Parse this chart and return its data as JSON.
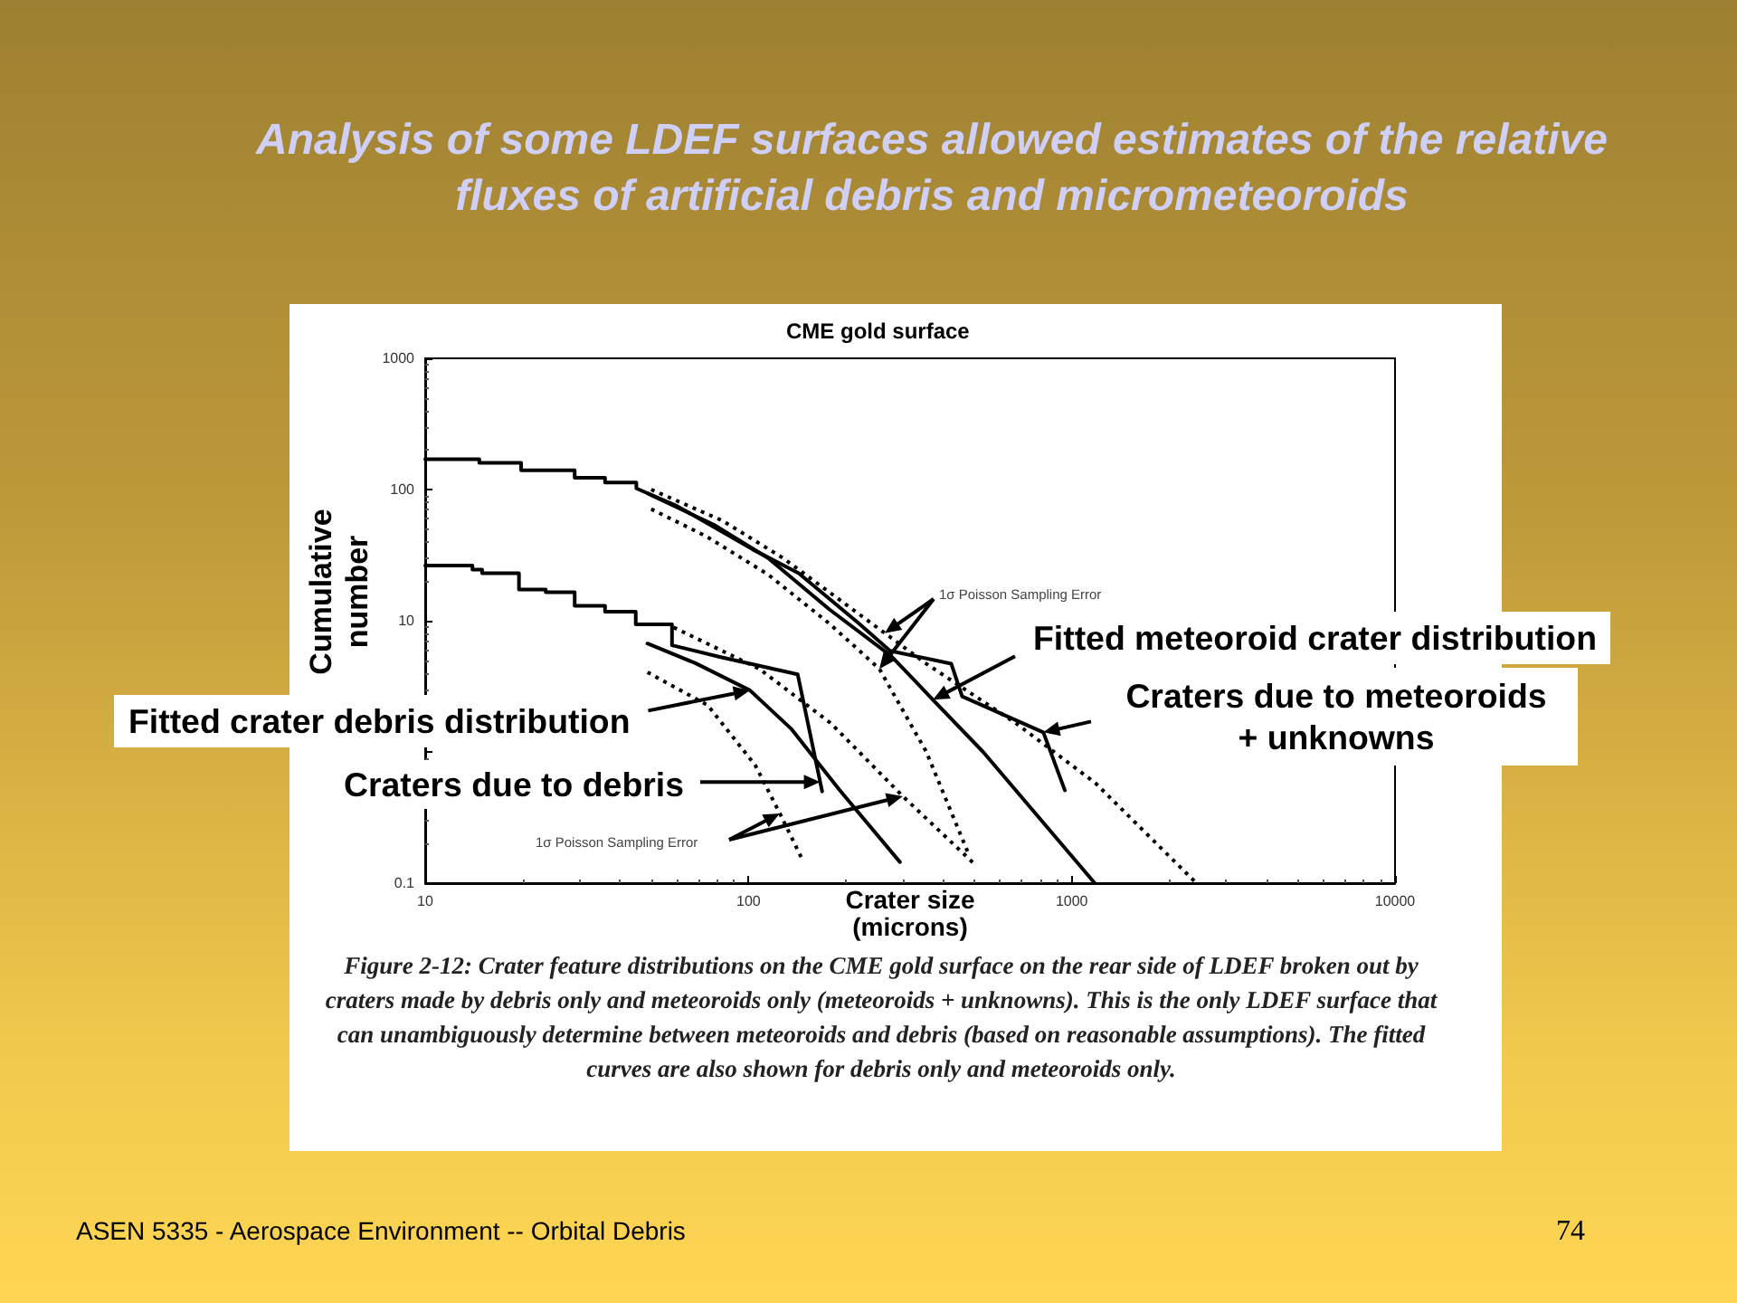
{
  "chart_data": {
    "type": "line",
    "title": "Analysis of some LDEF surfaces allowed estimates of the relative fluxes of artificial debris and micrometeoroids",
    "subtitle": "CME gold surface",
    "xlabel": "Crater size (microns)",
    "ylabel": "Cumulative number",
    "annotations": [
      "Craters due to meteoroids + unknowns",
      "Fitted meteoroid crater distribution",
      "Craters due to debris",
      "Fitted crater debris distribution",
      "1σ Poisson Sampling Error",
      "1σ Poisson Sampling Error",
      "Figure 2-12: Crater feature distributions on the CME gold surface on the rear side of LDEF broken out by craters made by debris only and meteoroids only (meteoroids + unknowns). This is the only LDEF surface that can unambiguously determine between meteoroids and debris (based on reasonable assumptions). The fitted curves are also shown for debris only and meteoroids only.",
      "ASEN 5335 - Aerospace Environment -- Orbital Debris",
      "74"
    ],
    "log": "xy",
    "xlim": [
      10,
      10000
    ],
    "ylim": [
      0.1,
      1000
    ],
    "xticks": [
      10,
      100,
      1000,
      10000
    ],
    "yticks": [
      0.1,
      {
        "value": 1,
        "label": null
      },
      10,
      100,
      1000
    ],
    "grid": false,
    "marker": "none",
    "series": [
      {
        "color": "#000000",
        "line_style": "solid",
        "x": [
          10,
          14.7,
          14.7,
          19.8,
          19.8,
          29,
          29,
          36,
          36,
          45,
          45,
          60,
          78,
          103,
          143,
          220,
          274,
          424,
          458,
          817,
          952
        ],
        "values": [
          170,
          170,
          160,
          160,
          140,
          140,
          123,
          123,
          113,
          113,
          102,
          75,
          52,
          35,
          23,
          9.5,
          5.9,
          4.7,
          2.65,
          1.41,
          0.51
        ]
      },
      {
        "color": "#000000",
        "line_style": "solid",
        "x": [
          49,
          78,
          115,
          178,
          276,
          372,
          532,
          1178
        ],
        "values": [
          93,
          54,
          30,
          12.2,
          5.4,
          2.5,
          1.0,
          0.1
        ]
      },
      {
        "color": "#000000",
        "line_style": "dotted",
        "x": [
          50,
          83,
          128,
          264,
          355,
          673,
          1183,
          2430
        ],
        "values": [
          100,
          58,
          30,
          8.05,
          4.7,
          1.65,
          0.58,
          0.1
        ]
      },
      {
        "color": "#000000",
        "line_style": "dotted",
        "x": [
          50,
          74,
          115,
          178,
          254,
          355,
          483
        ],
        "values": [
          71,
          44,
          22.5,
          9.5,
          4.3,
          1.0,
          0.16
        ]
      },
      {
        "color": "#000000",
        "line_style": "solid",
        "x": [
          10,
          14,
          14,
          15,
          15,
          19.5,
          19.5,
          23.6,
          23.6,
          29,
          29,
          36,
          36,
          44.8,
          44.8,
          58,
          58,
          81.5,
          142,
          169
        ],
        "values": [
          26.3,
          26.3,
          24.5,
          24.5,
          23,
          23,
          17.3,
          17.3,
          16.5,
          16.5,
          13,
          13,
          11.7,
          11.7,
          9.4,
          9.4,
          6.5,
          5.3,
          3.9,
          0.5
        ]
      },
      {
        "color": "#000000",
        "line_style": "solid",
        "x": [
          48.7,
          68.5,
          101,
          136,
          191,
          294
        ],
        "values": [
          6.7,
          4.75,
          2.95,
          1.49,
          0.515,
          0.145
        ]
      },
      {
        "color": "#000000",
        "line_style": "dotted",
        "x": [
          58.7,
          108,
          180,
          300,
          500
        ],
        "values": [
          8.9,
          4.3,
          1.65,
          0.46,
          0.14
        ]
      },
      {
        "color": "#000000",
        "line_style": "dotted",
        "x": [
          48.7,
          74.8,
          105,
          125,
          148
        ],
        "values": [
          4.05,
          2.27,
          0.79,
          0.34,
          0.145
        ]
      }
    ]
  }
}
